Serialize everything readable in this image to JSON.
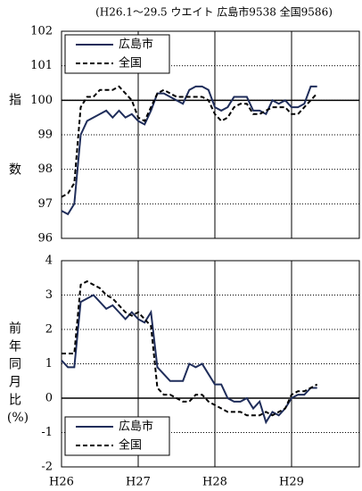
{
  "chart_data": [
    {
      "type": "line",
      "title": "(H26.1～29.5 ウエイト 広島市9538 全国9586)",
      "y_label": "指数",
      "ylim": [
        96,
        102
      ],
      "yticks": [
        96,
        97,
        98,
        99,
        100,
        101,
        102
      ],
      "reference_line": 100,
      "grid": true,
      "legend": "upper left",
      "series": [
        {
          "name": "広島市",
          "color": "#1f2d5a",
          "dashed": false,
          "values": [
            96.8,
            96.7,
            97.0,
            99.0,
            99.4,
            99.5,
            99.6,
            99.7,
            99.5,
            99.7,
            99.5,
            99.6,
            99.4,
            99.3,
            99.7,
            100.2,
            100.2,
            100.1,
            100.0,
            99.9,
            100.3,
            100.4,
            100.4,
            100.3,
            99.8,
            99.7,
            99.8,
            100.1,
            100.1,
            100.1,
            99.7,
            99.7,
            99.6,
            100.0,
            99.9,
            100.0,
            99.8,
            99.8,
            99.9,
            100.4,
            100.4
          ]
        },
        {
          "name": "全国",
          "color": "#000000",
          "dashed": true,
          "values": [
            97.2,
            97.3,
            97.6,
            99.8,
            100.1,
            100.1,
            100.3,
            100.3,
            100.3,
            100.4,
            100.2,
            100.0,
            99.5,
            99.4,
            99.8,
            100.2,
            100.3,
            100.2,
            100.1,
            100.1,
            100.1,
            100.1,
            100.1,
            100.0,
            99.6,
            99.4,
            99.5,
            99.8,
            99.9,
            99.9,
            99.6,
            99.6,
            99.7,
            99.8,
            99.8,
            99.8,
            99.6,
            99.6,
            99.8,
            100.0,
            100.2
          ]
        }
      ]
    },
    {
      "type": "line",
      "y_label": "前年同月比",
      "y_unit": "(%)",
      "categories": [
        "H26",
        null,
        null,
        null,
        null,
        null,
        null,
        null,
        null,
        null,
        null,
        null,
        "H27",
        null,
        null,
        null,
        null,
        null,
        null,
        null,
        null,
        null,
        null,
        null,
        "H28",
        null,
        null,
        null,
        null,
        null,
        null,
        null,
        null,
        null,
        null,
        null,
        "H29",
        null,
        null,
        null,
        null
      ],
      "ylim": [
        -2,
        4
      ],
      "yticks": [
        -2,
        -1,
        0,
        1,
        2,
        3,
        4
      ],
      "reference_line": 0,
      "grid": true,
      "legend": "lower left",
      "series": [
        {
          "name": "広島市",
          "color": "#1f2d5a",
          "dashed": false,
          "values": [
            1.1,
            0.9,
            0.9,
            2.8,
            2.9,
            3.0,
            2.8,
            2.6,
            2.7,
            2.5,
            2.3,
            2.5,
            2.3,
            2.2,
            2.5,
            0.9,
            0.7,
            0.5,
            0.5,
            0.5,
            1.0,
            0.9,
            1.0,
            0.7,
            0.4,
            0.4,
            0.0,
            -0.1,
            -0.1,
            0.0,
            -0.3,
            -0.1,
            -0.7,
            -0.4,
            -0.5,
            -0.3,
            0.0,
            0.1,
            0.1,
            0.3,
            0.3
          ]
        },
        {
          "name": "全国",
          "color": "#000000",
          "dashed": true,
          "values": [
            1.3,
            1.3,
            1.3,
            3.3,
            3.4,
            3.3,
            3.2,
            3.0,
            2.9,
            2.7,
            2.5,
            2.4,
            2.5,
            2.3,
            2.1,
            0.3,
            0.1,
            0.1,
            0.0,
            -0.1,
            -0.1,
            0.1,
            0.1,
            -0.1,
            -0.2,
            -0.3,
            -0.4,
            -0.4,
            -0.4,
            -0.5,
            -0.5,
            -0.5,
            -0.4,
            -0.5,
            -0.4,
            -0.3,
            0.1,
            0.2,
            0.2,
            0.3,
            0.4
          ]
        }
      ]
    }
  ]
}
